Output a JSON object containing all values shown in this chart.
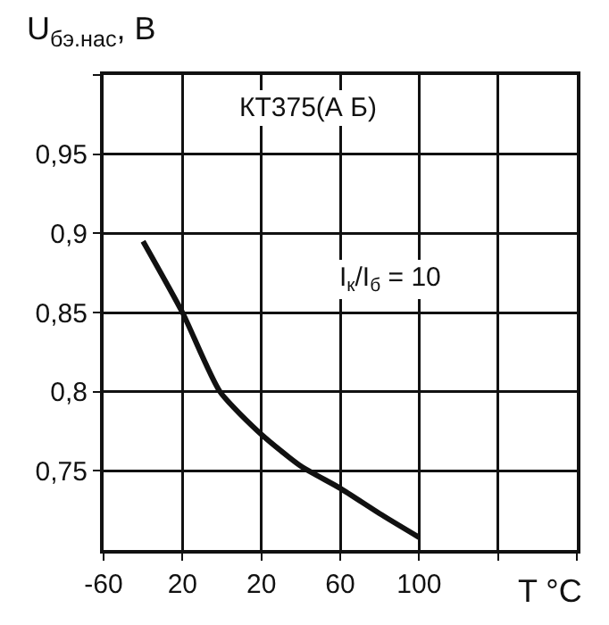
{
  "chart_data": {
    "type": "line",
    "ylabel": "U$_{бэ.нас}$, В",
    "xlabel": "T °C",
    "annotations": [
      "КТ375(А Б)",
      "I$_{к}$/I$_{б}$ = 10"
    ],
    "x": [
      -40,
      -20,
      -1,
      20,
      40,
      60,
      80,
      100
    ],
    "series": [
      {
        "color": "#111111",
        "values": [
          0.895,
          0.85,
          0.8,
          0.773,
          0.753,
          0.739,
          0.723,
          0.708
        ]
      }
    ],
    "xlim": [
      -60,
      180
    ],
    "xticks": [
      -60,
      {
        "value": -20,
        "label": "20"
      },
      20,
      60,
      100,
      {
        "value": 140,
        "label": null
      },
      {
        "value": 180,
        "label": null
      }
    ],
    "ylim": [
      0.7,
      1.0
    ],
    "yticks": [
      {
        "value": 0.75,
        "label": "0,75"
      },
      {
        "value": 0.8,
        "label": "0,8"
      },
      {
        "value": 0.85,
        "label": "0,85"
      },
      {
        "value": 0.9,
        "label": "0,9"
      },
      {
        "value": 0.95,
        "label": "0,95"
      },
      {
        "value": 1.0,
        "label": null
      }
    ],
    "grid": true,
    "marker": "none",
    "line_style": "solid"
  }
}
